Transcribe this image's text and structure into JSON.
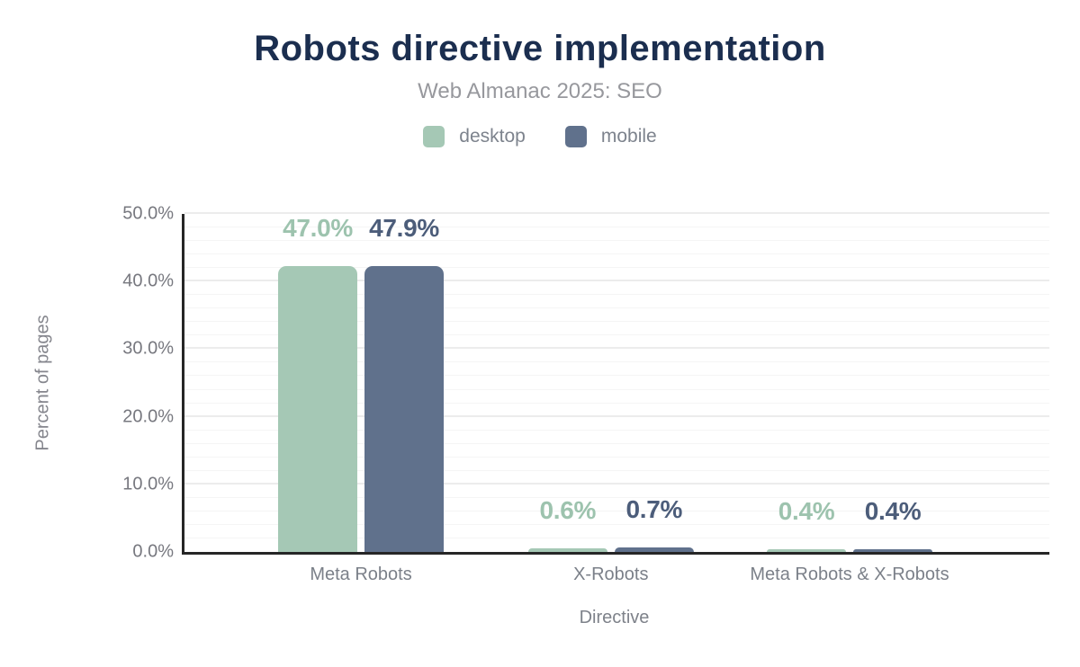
{
  "chart_data": {
    "type": "bar",
    "title": "Robots directive implementation",
    "subtitle": "Web Almanac 2025: SEO",
    "xlabel": "Directive",
    "ylabel": "Percent of pages",
    "categories": [
      "Meta Robots",
      "X-Robots",
      "Meta Robots & X-Robots"
    ],
    "series": [
      {
        "name": "desktop",
        "color": "#a5c8b5",
        "label_color": "#9dc3ae",
        "values": [
          47.0,
          0.6,
          0.4
        ],
        "labels": [
          "47.0%",
          "0.6%",
          "0.4%"
        ]
      },
      {
        "name": "mobile",
        "color": "#60718c",
        "label_color": "#4c5d7a",
        "values": [
          47.9,
          0.7,
          0.4
        ],
        "labels": [
          "47.9%",
          "0.7%",
          "0.4%"
        ]
      }
    ],
    "ylim": [
      0,
      50
    ],
    "yticks": [
      "0.0%",
      "10.0%",
      "20.0%",
      "30.0%",
      "40.0%",
      "50.0%"
    ],
    "grid": {
      "horizontal": true,
      "minor_step_pct": 2,
      "major_step_pct": 10
    },
    "legend_position": "top",
    "title_color": "#1b2e4f",
    "axis_color": "#262626"
  }
}
